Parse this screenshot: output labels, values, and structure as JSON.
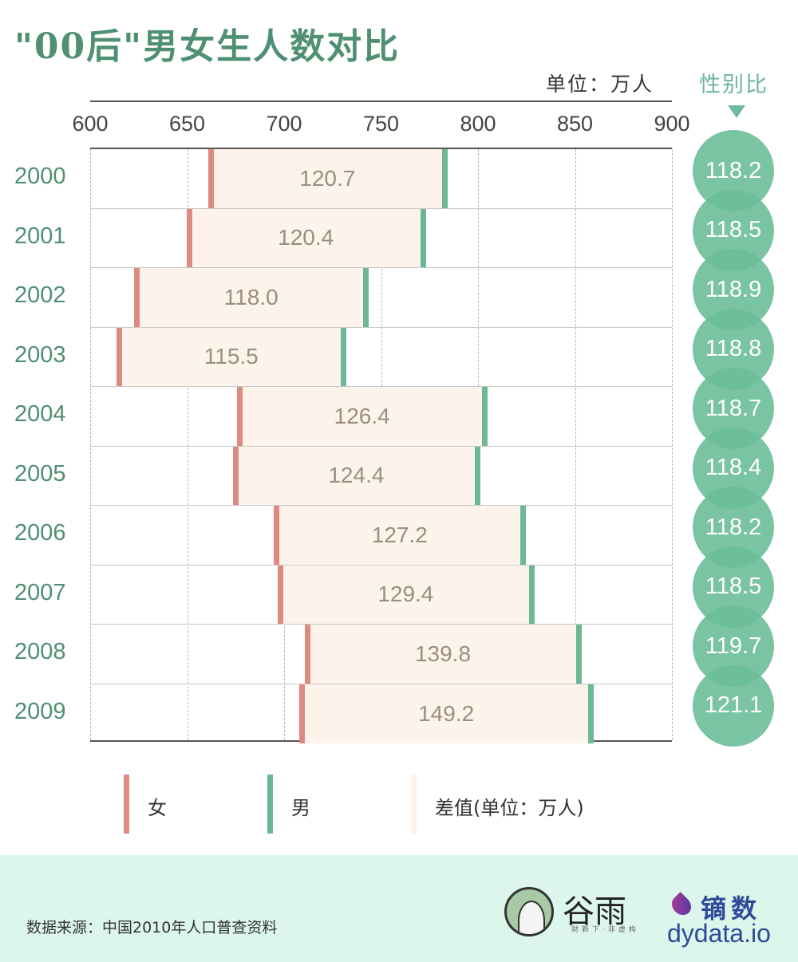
{
  "title": "\"00后\"男女生人数对比",
  "unit_label": "单位：万人",
  "ratio_label": "性别比",
  "axis": {
    "ticks": [
      {
        "value": 600,
        "label": "600"
      },
      {
        "value": 650,
        "label": "650"
      },
      {
        "value": 700,
        "label": "700"
      },
      {
        "value": 750,
        "label": "750"
      },
      {
        "value": 800,
        "label": "800"
      },
      {
        "value": 850,
        "label": "850"
      },
      {
        "value": 900,
        "label": "900"
      }
    ]
  },
  "rows": [
    {
      "year": "2000",
      "female": 662.0,
      "male": 782.7,
      "diff": "120.7",
      "ratio": "118.2"
    },
    {
      "year": "2001",
      "female": 651.0,
      "male": 771.4,
      "diff": "120.4",
      "ratio": "118.5"
    },
    {
      "year": "2002",
      "female": 624.0,
      "male": 742.0,
      "diff": "118.0",
      "ratio": "118.9"
    },
    {
      "year": "2003",
      "female": 615.0,
      "male": 730.5,
      "diff": "115.5",
      "ratio": "118.8"
    },
    {
      "year": "2004",
      "female": 677.0,
      "male": 803.4,
      "diff": "126.4",
      "ratio": "118.7"
    },
    {
      "year": "2005",
      "female": 675.0,
      "male": 799.4,
      "diff": "124.4",
      "ratio": "118.4"
    },
    {
      "year": "2006",
      "female": 696.0,
      "male": 823.2,
      "diff": "127.2",
      "ratio": "118.2"
    },
    {
      "year": "2007",
      "female": 698.0,
      "male": 827.4,
      "diff": "129.4",
      "ratio": "118.5"
    },
    {
      "year": "2008",
      "female": 712.0,
      "male": 851.8,
      "diff": "139.8",
      "ratio": "119.7"
    },
    {
      "year": "2009",
      "female": 709.0,
      "male": 858.2,
      "diff": "149.2",
      "ratio": "121.1"
    }
  ],
  "legend": [
    {
      "label": "女",
      "color": "#de8a80"
    },
    {
      "label": "男",
      "color": "#6bb796"
    },
    {
      "label": "差值(单位：万人)",
      "color": "#fdf3ea"
    }
  ],
  "footer": {
    "source": "数据来源：中国2010年人口普查资料",
    "logo_guyu": "谷雨",
    "logo_guyu_sub": "财新下·非虚构",
    "logo_dy_cn": "镝数",
    "logo_dy_url": "dydata.io"
  },
  "colors": {
    "female": "#de8a80",
    "male": "#6bb796",
    "diff_band": "#fdf3ea",
    "title": "#4f8f72",
    "ratio_bubble": "#6cbe99",
    "footer_bg": "#dcf6ec"
  },
  "chart_data": {
    "type": "bar",
    "subtype": "dumbbell-range",
    "title": "\"00后\"男女生人数对比",
    "xlabel": "单位：万人",
    "ylabel": "",
    "xlim": [
      600,
      900
    ],
    "grid": true,
    "categories": [
      "2000",
      "2001",
      "2002",
      "2003",
      "2004",
      "2005",
      "2006",
      "2007",
      "2008",
      "2009"
    ],
    "series": [
      {
        "name": "女",
        "values": [
          662.0,
          651.0,
          624.0,
          615.0,
          677.0,
          675.0,
          696.0,
          698.0,
          712.0,
          709.0
        ]
      },
      {
        "name": "男",
        "values": [
          782.7,
          771.4,
          742.0,
          730.5,
          803.4,
          799.4,
          823.2,
          827.4,
          851.8,
          858.2
        ]
      },
      {
        "name": "差值(单位：万人)",
        "values": [
          120.7,
          120.4,
          118.0,
          115.5,
          126.4,
          124.4,
          127.2,
          129.4,
          139.8,
          149.2
        ]
      },
      {
        "name": "性别比",
        "values": [
          118.2,
          118.5,
          118.9,
          118.8,
          118.7,
          118.4,
          118.2,
          118.5,
          119.7,
          121.1
        ]
      }
    ],
    "legend_position": "bottom",
    "annotations": [
      "单位：万人",
      "性别比"
    ]
  }
}
